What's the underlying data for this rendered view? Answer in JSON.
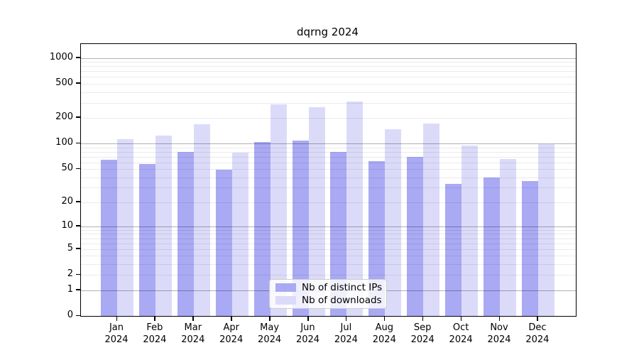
{
  "chart_data": {
    "type": "bar",
    "title": "dqrng 2024",
    "yscale": "log1p",
    "ylim": [
      0,
      1450
    ],
    "y_ticks": [
      0,
      1,
      2,
      5,
      10,
      20,
      50,
      100,
      200,
      500,
      1000
    ],
    "grid": "horizontal log-decade majors with minor lines, no vertical grid",
    "categories": [
      "Jan",
      "Feb",
      "Mar",
      "Apr",
      "May",
      "Jun",
      "Jul",
      "Aug",
      "Sep",
      "Oct",
      "Nov",
      "Dec"
    ],
    "category_year": "2024",
    "series": [
      {
        "name": "Nb of distinct IPs",
        "color": "#a9a9f4",
        "values": [
          64,
          57,
          80,
          49,
          104,
          108,
          80,
          62,
          70,
          33,
          40,
          36
        ]
      },
      {
        "name": "Nb of downloads",
        "color": "#dbdbf9",
        "values": [
          112,
          124,
          168,
          78,
          286,
          264,
          309,
          147,
          171,
          95,
          66,
          99
        ]
      }
    ],
    "legend_position": "lower center"
  }
}
